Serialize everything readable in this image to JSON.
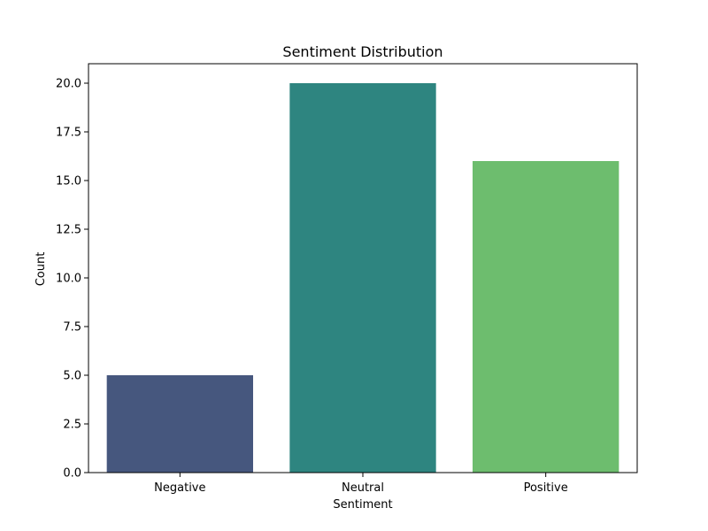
{
  "chart_data": {
    "type": "bar",
    "title": "Sentiment Distribution",
    "xlabel": "Sentiment",
    "ylabel": "Count",
    "categories": [
      "Negative",
      "Neutral",
      "Positive"
    ],
    "values": [
      5,
      20,
      16
    ],
    "colors": [
      "#46577e",
      "#2e8580",
      "#6dbd6e"
    ],
    "ylim": [
      0,
      21
    ],
    "yticks": [
      0,
      2.5,
      5,
      7.5,
      10,
      12.5,
      15,
      17.5,
      20
    ],
    "ytick_labels": [
      "0.0",
      "2.5",
      "5.0",
      "7.5",
      "10.0",
      "12.5",
      "15.0",
      "17.5",
      "20.0"
    ],
    "grid": false,
    "legend": "none"
  }
}
